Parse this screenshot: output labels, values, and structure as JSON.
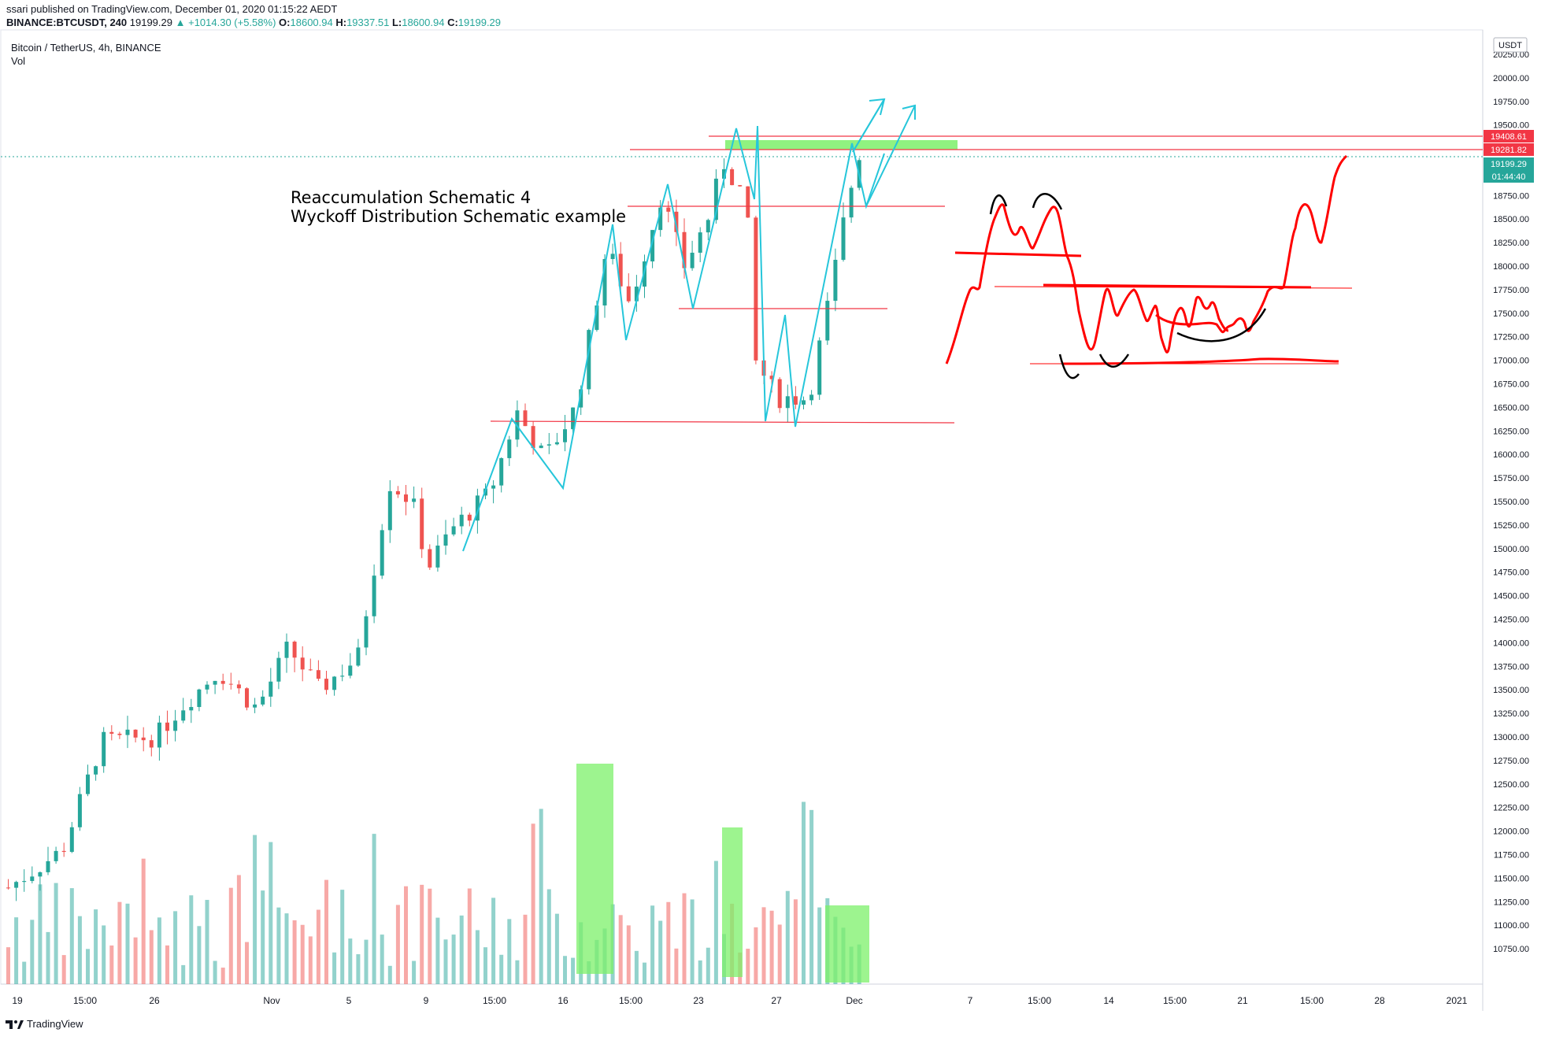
{
  "header": {
    "publish_line": "ssari published on TradingView.com, December 01, 2020 01:15:22 AEDT",
    "symbol": "BINANCE:BTCUSDT, 240",
    "last": "19199.29",
    "change": "▲ +1014.30 (+5.58%)",
    "o_label": "O:",
    "o_value": "18600.94",
    "h_label": "H:",
    "h_value": "19337.51",
    "l_label": "L:",
    "l_value": "18600.94",
    "c_label": "C:",
    "c_value": "19199.29"
  },
  "legend": {
    "title": "Bitcoin / TetherUS, 4h, BINANCE",
    "indicator": "Vol"
  },
  "price_axis": {
    "currency_badge": "USDT",
    "labels": [
      "20250.00",
      "20000.00",
      "19750.00",
      "19500.00",
      "19250.00",
      "19000.00",
      "18750.00",
      "18500.00",
      "18250.00",
      "18000.00",
      "17750.00",
      "17500.00",
      "17250.00",
      "17000.00",
      "16750.00",
      "16500.00",
      "16250.00",
      "16000.00",
      "15750.00",
      "15500.00",
      "15250.00",
      "15000.00",
      "14750.00",
      "14500.00",
      "14250.00",
      "14000.00",
      "13750.00",
      "13500.00",
      "13250.00",
      "13000.00",
      "12750.00",
      "12500.00",
      "12250.00",
      "12000.00",
      "11750.00",
      "11500.00",
      "11250.00",
      "11000.00",
      "10750.00"
    ],
    "tag_high": "19408.61",
    "tag_mid": "19281.82",
    "tag_last": "19199.29",
    "tag_countdown": "01:44:40",
    "tag_high_color": "#f23645",
    "tag_last_color": "#26a69a"
  },
  "time_axis": {
    "labels": [
      "19",
      "15:00",
      "26",
      "Nov",
      "5",
      "9",
      "15:00",
      "16",
      "15:00",
      "23",
      "27",
      "Dec",
      "7",
      "15:00",
      "14",
      "15:00",
      "21",
      "15:00",
      "28",
      "2021"
    ]
  },
  "annotations": {
    "text_line1": "Reaccumulation Schematic 4",
    "text_line2": "Wyckoff Distribution Schematic example"
  },
  "footer": {
    "brand": "TradingView"
  },
  "colors": {
    "up": "#26a69a",
    "down": "#ef5350",
    "drawing_red": "#ff0000",
    "drawing_cyan": "#26c6da",
    "highlight_green": "#7cf06a"
  },
  "chart_data": {
    "type": "candlestick",
    "symbol": "BTCUSDT",
    "interval": "4h",
    "ylim": [
      10500,
      20350
    ],
    "price_path": [
      {
        "t": 0,
        "p": 11400
      },
      {
        "t": 0.07,
        "p": 11800
      },
      {
        "t": 0.12,
        "p": 12950
      },
      {
        "t": 0.19,
        "p": 13000
      },
      {
        "t": 0.22,
        "p": 13300
      },
      {
        "t": 0.27,
        "p": 13700
      },
      {
        "t": 0.32,
        "p": 13300
      },
      {
        "t": 0.36,
        "p": 13950
      },
      {
        "t": 0.4,
        "p": 13500
      },
      {
        "t": 0.45,
        "p": 13850
      },
      {
        "t": 0.49,
        "p": 15700
      },
      {
        "t": 0.52,
        "p": 15500
      },
      {
        "t": 0.54,
        "p": 14800
      },
      {
        "t": 0.57,
        "p": 15200
      },
      {
        "t": 0.62,
        "p": 15600
      },
      {
        "t": 0.655,
        "p": 16450
      },
      {
        "t": 0.69,
        "p": 15950
      },
      {
        "t": 0.73,
        "p": 16500
      },
      {
        "t": 0.77,
        "p": 18200
      },
      {
        "t": 0.8,
        "p": 17600
      },
      {
        "t": 0.84,
        "p": 18750
      },
      {
        "t": 0.87,
        "p": 18000
      },
      {
        "t": 0.9,
        "p": 18500
      },
      {
        "t": 0.92,
        "p": 19100
      },
      {
        "t": 0.95,
        "p": 18700
      },
      {
        "t": 0.96,
        "p": 17000
      },
      {
        "t": 0.99,
        "p": 16600
      },
      {
        "t": 1.03,
        "p": 16600
      },
      {
        "t": 1.06,
        "p": 17800
      },
      {
        "t": 1.08,
        "p": 18700
      },
      {
        "t": 1.095,
        "p": 19200
      }
    ],
    "volume_ylim": [
      0,
      3000
    ]
  }
}
